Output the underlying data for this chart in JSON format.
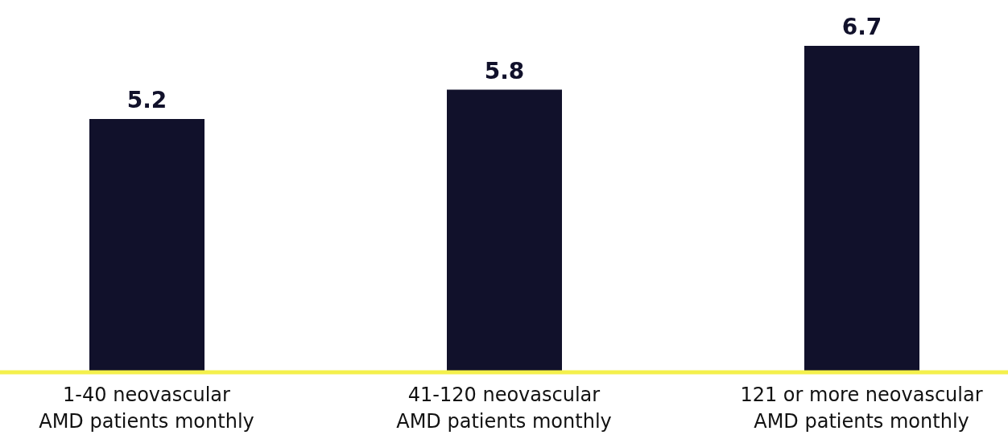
{
  "chart_data": {
    "type": "bar",
    "categories": [
      "1-40 neovascular AMD patients monthly",
      "41-120 neovascular AMD patients monthly",
      "121 or more neovascular AMD patients monthly"
    ],
    "values": [
      5.2,
      5.8,
      6.7
    ],
    "color": "#11112b",
    "data_labels": true,
    "grid": false,
    "legend": false
  }
}
